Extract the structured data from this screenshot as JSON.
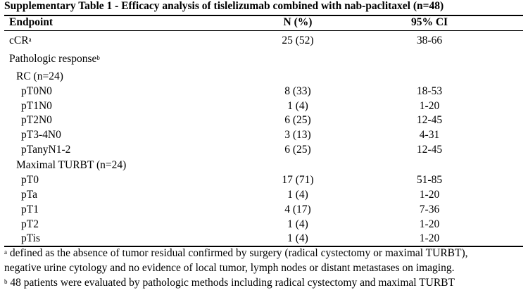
{
  "title": "Supplementary Table 1 - Efficacy analysis of tislelizumab combined with nab-paclitaxel (n=48)",
  "headers": {
    "endpoint": "Endpoint",
    "n": "N (%)",
    "ci": "95% CI"
  },
  "rows": [
    {
      "label": "cCR",
      "sup": "a",
      "n": "25 (52)",
      "ci": "38-66"
    },
    {
      "label": "Pathologic response",
      "sup": "b",
      "n": "",
      "ci": ""
    },
    {
      "label": "RC (n=24)",
      "sup": "",
      "n": "",
      "ci": ""
    },
    {
      "label": "pT0N0",
      "sup": "",
      "n": "8 (33)",
      "ci": "18-53"
    },
    {
      "label": "pT1N0",
      "sup": "",
      "n": "1 (4)",
      "ci": "1-20"
    },
    {
      "label": "pT2N0",
      "sup": "",
      "n": "6 (25)",
      "ci": "12-45"
    },
    {
      "label": "pT3-4N0",
      "sup": "",
      "n": "3 (13)",
      "ci": "4-31"
    },
    {
      "label": "pTanyN1-2",
      "sup": "",
      "n": "6 (25)",
      "ci": "12-45"
    },
    {
      "label": "Maximal TURBT (n=24)",
      "sup": "",
      "n": "",
      "ci": ""
    },
    {
      "label": "pT0",
      "sup": "",
      "n": "17 (71)",
      "ci": "51-85"
    },
    {
      "label": "pTa",
      "sup": "",
      "n": "1 (4)",
      "ci": "1-20"
    },
    {
      "label": "pT1",
      "sup": "",
      "n": "4 (17)",
      "ci": "7-36"
    },
    {
      "label": "pT2",
      "sup": "",
      "n": "1 (4)",
      "ci": "1-20"
    },
    {
      "label": "pTis",
      "sup": "",
      "n": "1 (4)",
      "ci": "1-20"
    }
  ],
  "footnotes": {
    "a_mark": "a",
    "a_line1": " defined as the absence of tumor residual  confirmed by surgery (radical cystectomy or maximal TURBT),",
    "a_line2": "negative urine cytology and no evidence of local tumor, lymph nodes or distant metastases on imaging.",
    "b_mark": "b",
    "b_line1": " 48 patients were evaluated by pathologic methods including radical cystectomy and maximal TURBT"
  }
}
